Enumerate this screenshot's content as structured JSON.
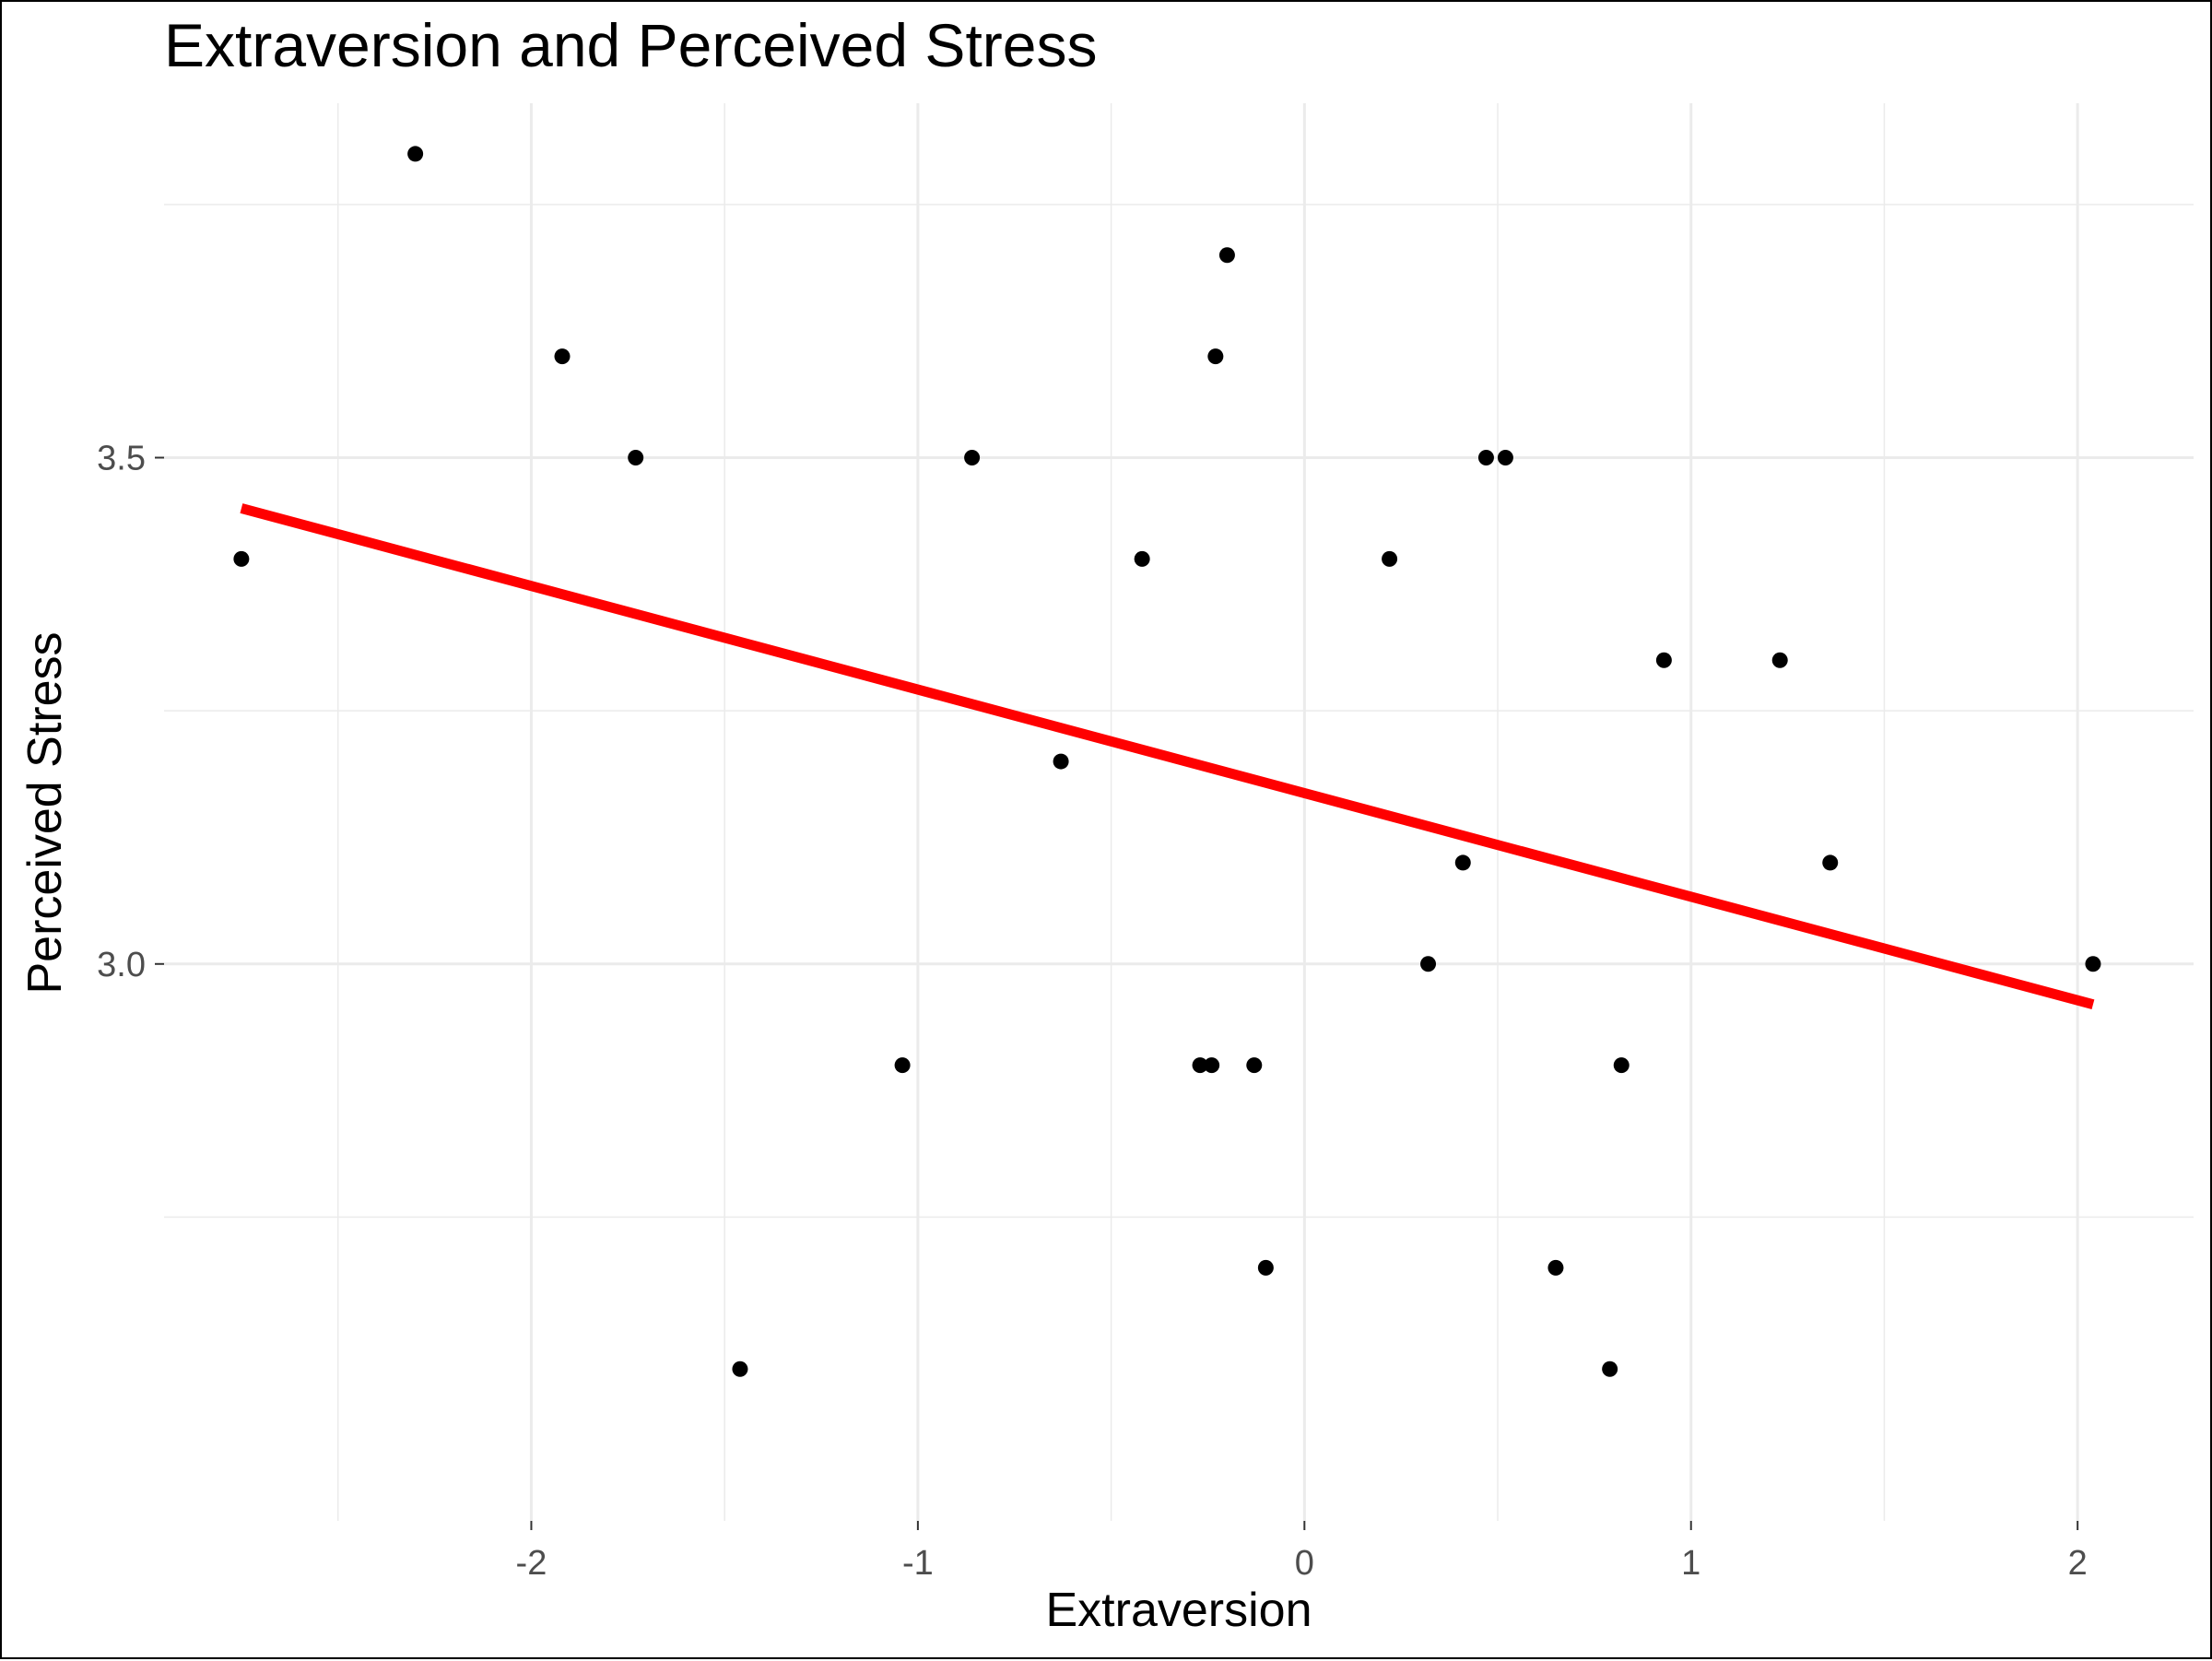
{
  "chart_data": {
    "type": "scatter",
    "title": "Extraversion and Perceived Stress",
    "xlabel": "Extraversion",
    "ylabel": "Perceived Stress",
    "xlim": [
      -2.95,
      2.3
    ],
    "ylim": [
      2.45,
      3.85
    ],
    "x_ticks": [
      -2,
      -1,
      0,
      1,
      2
    ],
    "x_tick_labels": [
      "-2",
      "-1",
      "0",
      "1",
      "2"
    ],
    "x_minor_ticks": [
      -2.5,
      -1.5,
      -0.5,
      0.5,
      1.5
    ],
    "y_ticks": [
      3.0,
      3.5
    ],
    "y_tick_labels": [
      "3.0",
      "3.5"
    ],
    "y_minor_ticks": [
      2.75,
      3.25,
      3.75
    ],
    "grid": true,
    "point_color": "#000000",
    "line_color": "#ff0000",
    "gridline_color": "#ebebeb",
    "points": [
      {
        "x": -2.75,
        "y": 3.4
      },
      {
        "x": -2.3,
        "y": 3.8
      },
      {
        "x": -1.92,
        "y": 3.6
      },
      {
        "x": -1.73,
        "y": 3.5
      },
      {
        "x": -1.46,
        "y": 2.6
      },
      {
        "x": -1.04,
        "y": 2.9
      },
      {
        "x": -0.86,
        "y": 3.5
      },
      {
        "x": -0.63,
        "y": 3.2
      },
      {
        "x": -0.42,
        "y": 3.4
      },
      {
        "x": -0.27,
        "y": 2.9
      },
      {
        "x": -0.24,
        "y": 2.9
      },
      {
        "x": -0.23,
        "y": 3.6
      },
      {
        "x": -0.2,
        "y": 3.7
      },
      {
        "x": -0.13,
        "y": 2.9
      },
      {
        "x": -0.1,
        "y": 2.7
      },
      {
        "x": 0.22,
        "y": 3.4
      },
      {
        "x": 0.32,
        "y": 3.0
      },
      {
        "x": 0.41,
        "y": 3.1
      },
      {
        "x": 0.47,
        "y": 3.5
      },
      {
        "x": 0.52,
        "y": 3.5
      },
      {
        "x": 0.65,
        "y": 2.7
      },
      {
        "x": 0.79,
        "y": 2.6
      },
      {
        "x": 0.82,
        "y": 2.9
      },
      {
        "x": 0.93,
        "y": 3.3
      },
      {
        "x": 1.23,
        "y": 3.3
      },
      {
        "x": 1.36,
        "y": 3.1
      },
      {
        "x": 2.04,
        "y": 3.0
      }
    ],
    "fit_line": {
      "x": [
        -2.75,
        2.04
      ],
      "y": [
        3.45,
        2.96
      ]
    }
  }
}
